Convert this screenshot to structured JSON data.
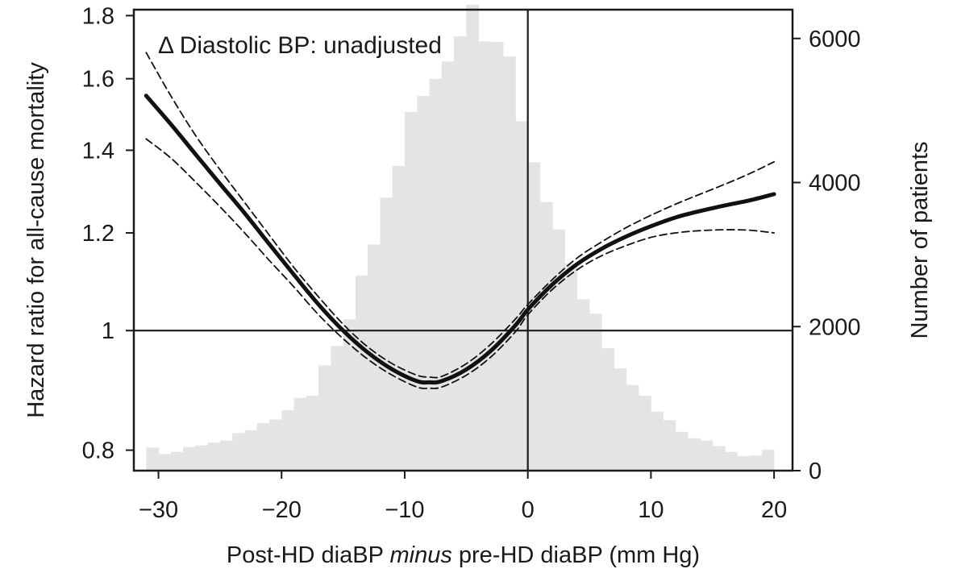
{
  "chart_data": {
    "type": "line",
    "annotation": "Δ Diastolic BP: unadjusted",
    "xlabel": {
      "before": "Post-HD diaBP ",
      "italic": "minus",
      "after": " pre-HD diaBP (mm Hg)"
    },
    "ylabel_left": "Hazard ratio for all-cause mortality",
    "ylabel_right": "Number of patients",
    "xlim": [
      -32,
      21.5
    ],
    "ylim_left": [
      0.77,
      1.82
    ],
    "ylim_right": [
      0,
      6400
    ],
    "log_scale_left": true,
    "x_ticks": [
      -30,
      -20,
      -10,
      0,
      10,
      20
    ],
    "x_tick_labels": [
      "−30",
      "−20",
      "−10",
      "0",
      "10",
      "20"
    ],
    "y_left_ticks": [
      0.8,
      1,
      1.2,
      1.4,
      1.6,
      1.8
    ],
    "y_left_tick_labels": [
      "0.8",
      "1",
      "1.2",
      "1.4",
      "1.6",
      "1.8"
    ],
    "y_right_ticks": [
      0,
      2000,
      4000,
      6000
    ],
    "y_right_tick_labels": [
      "0",
      "2000",
      "4000",
      "6000"
    ],
    "reference_lines": {
      "x": 0,
      "y_left": 1
    },
    "histogram": {
      "bin_width": 1,
      "x_start": [
        -31,
        -30,
        -29,
        -28,
        -27,
        -26,
        -25,
        -24,
        -23,
        -22,
        -21,
        -20,
        -19,
        -18,
        -17,
        -16,
        -15,
        -14,
        -13,
        -12,
        -11,
        -10,
        -9,
        -8,
        -7,
        -6,
        -5,
        -4,
        -3,
        -2,
        -1,
        0,
        1,
        2,
        3,
        4,
        5,
        6,
        7,
        8,
        9,
        10,
        11,
        12,
        13,
        14,
        15,
        16,
        17,
        18,
        19
      ],
      "counts": [
        320,
        230,
        260,
        330,
        350,
        390,
        420,
        520,
        560,
        660,
        710,
        840,
        1010,
        1040,
        1460,
        1730,
        2100,
        2710,
        3140,
        3790,
        4230,
        4980,
        5200,
        5440,
        5680,
        6030,
        6470,
        5960,
        5950,
        5750,
        4850,
        4280,
        3730,
        3350,
        2880,
        2380,
        2180,
        1700,
        1420,
        1190,
        1040,
        820,
        700,
        540,
        450,
        420,
        340,
        260,
        200,
        210,
        290
      ],
      "color": "#e3e4e6"
    },
    "series": [
      {
        "style": "solid",
        "x": [
          -31,
          -29,
          -27,
          -25,
          -23,
          -21,
          -19,
          -17,
          -15,
          -13,
          -11,
          -9,
          -8,
          -7,
          -5,
          -3,
          -1,
          0,
          2,
          4,
          6,
          8,
          10,
          12,
          14,
          16,
          18,
          20
        ],
        "y": [
          1.55,
          1.47,
          1.39,
          1.315,
          1.245,
          1.175,
          1.11,
          1.05,
          1.0,
          0.96,
          0.93,
          0.91,
          0.908,
          0.91,
          0.93,
          0.963,
          1.01,
          1.04,
          1.09,
          1.132,
          1.165,
          1.192,
          1.215,
          1.235,
          1.25,
          1.263,
          1.275,
          1.29
        ]
      },
      {
        "style": "dashed",
        "x": [
          -31,
          -29,
          -27,
          -25,
          -23,
          -21,
          -19,
          -17,
          -15,
          -13,
          -11,
          -9,
          -8,
          -7,
          -5,
          -3,
          -1,
          0,
          2,
          4,
          6,
          8,
          10,
          12,
          14,
          16,
          18,
          20
        ],
        "y": [
          1.68,
          1.55,
          1.44,
          1.35,
          1.27,
          1.195,
          1.125,
          1.065,
          1.012,
          0.97,
          0.94,
          0.92,
          0.917,
          0.918,
          0.94,
          0.975,
          1.022,
          1.05,
          1.1,
          1.145,
          1.18,
          1.212,
          1.24,
          1.266,
          1.29,
          1.314,
          1.34,
          1.37
        ]
      },
      {
        "style": "dashed",
        "x": [
          -31,
          -29,
          -27,
          -25,
          -23,
          -21,
          -19,
          -17,
          -15,
          -13,
          -11,
          -9,
          -8,
          -7,
          -5,
          -3,
          -1,
          0,
          2,
          4,
          6,
          8,
          10,
          12,
          14,
          16,
          18,
          20
        ],
        "y": [
          1.43,
          1.38,
          1.32,
          1.26,
          1.2,
          1.14,
          1.085,
          1.03,
          0.985,
          0.948,
          0.92,
          0.9,
          0.898,
          0.9,
          0.92,
          0.952,
          0.998,
          1.03,
          1.08,
          1.12,
          1.15,
          1.172,
          1.19,
          1.2,
          1.205,
          1.207,
          1.206,
          1.2
        ]
      }
    ]
  }
}
